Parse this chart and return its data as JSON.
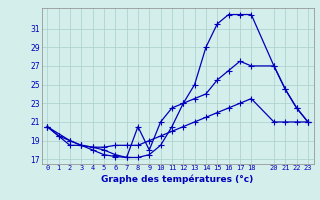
{
  "title": "Graphe des températures (°c)",
  "background_color": "#d4eeec",
  "grid_color": "#aacfcc",
  "line_color": "#0000bb",
  "xlim": [
    -0.5,
    23.5
  ],
  "ylim": [
    16.5,
    33.2
  ],
  "xticks": [
    0,
    1,
    2,
    3,
    4,
    5,
    6,
    7,
    8,
    9,
    10,
    11,
    12,
    13,
    14,
    15,
    16,
    17,
    18,
    20,
    21,
    22,
    23
  ],
  "yticks": [
    17,
    19,
    21,
    23,
    25,
    27,
    29,
    31
  ],
  "series1_x": [
    0,
    1,
    2,
    3,
    4,
    5,
    6,
    7,
    8,
    9,
    10,
    11,
    12,
    13,
    14,
    15,
    16,
    17,
    18,
    20,
    21,
    22,
    23
  ],
  "series1_y": [
    20.5,
    19.5,
    18.5,
    18.5,
    18.0,
    17.5,
    17.3,
    17.2,
    17.2,
    17.5,
    18.5,
    20.5,
    23.0,
    25.0,
    29.0,
    31.5,
    32.5,
    32.5,
    32.5,
    27.0,
    24.5,
    22.5,
    21.0
  ],
  "series2_x": [
    0,
    1,
    2,
    3,
    4,
    5,
    6,
    7,
    8,
    9,
    10,
    11,
    12,
    13,
    14,
    15,
    16,
    17,
    18,
    20,
    21,
    22,
    23
  ],
  "series2_y": [
    20.5,
    19.5,
    19.0,
    18.5,
    18.3,
    18.0,
    17.5,
    17.2,
    20.5,
    18.0,
    21.0,
    22.5,
    23.0,
    23.5,
    24.0,
    25.5,
    26.5,
    27.5,
    27.0,
    27.0,
    24.5,
    22.5,
    21.0
  ],
  "series3_x": [
    0,
    2,
    3,
    4,
    5,
    6,
    7,
    8,
    9,
    10,
    11,
    12,
    13,
    14,
    15,
    16,
    17,
    18,
    20,
    21,
    22,
    23
  ],
  "series3_y": [
    20.5,
    19.0,
    18.5,
    18.3,
    18.3,
    18.5,
    18.5,
    18.5,
    19.0,
    19.5,
    20.0,
    20.5,
    21.0,
    21.5,
    22.0,
    22.5,
    23.0,
    23.5,
    21.0,
    21.0,
    21.0,
    21.0
  ]
}
